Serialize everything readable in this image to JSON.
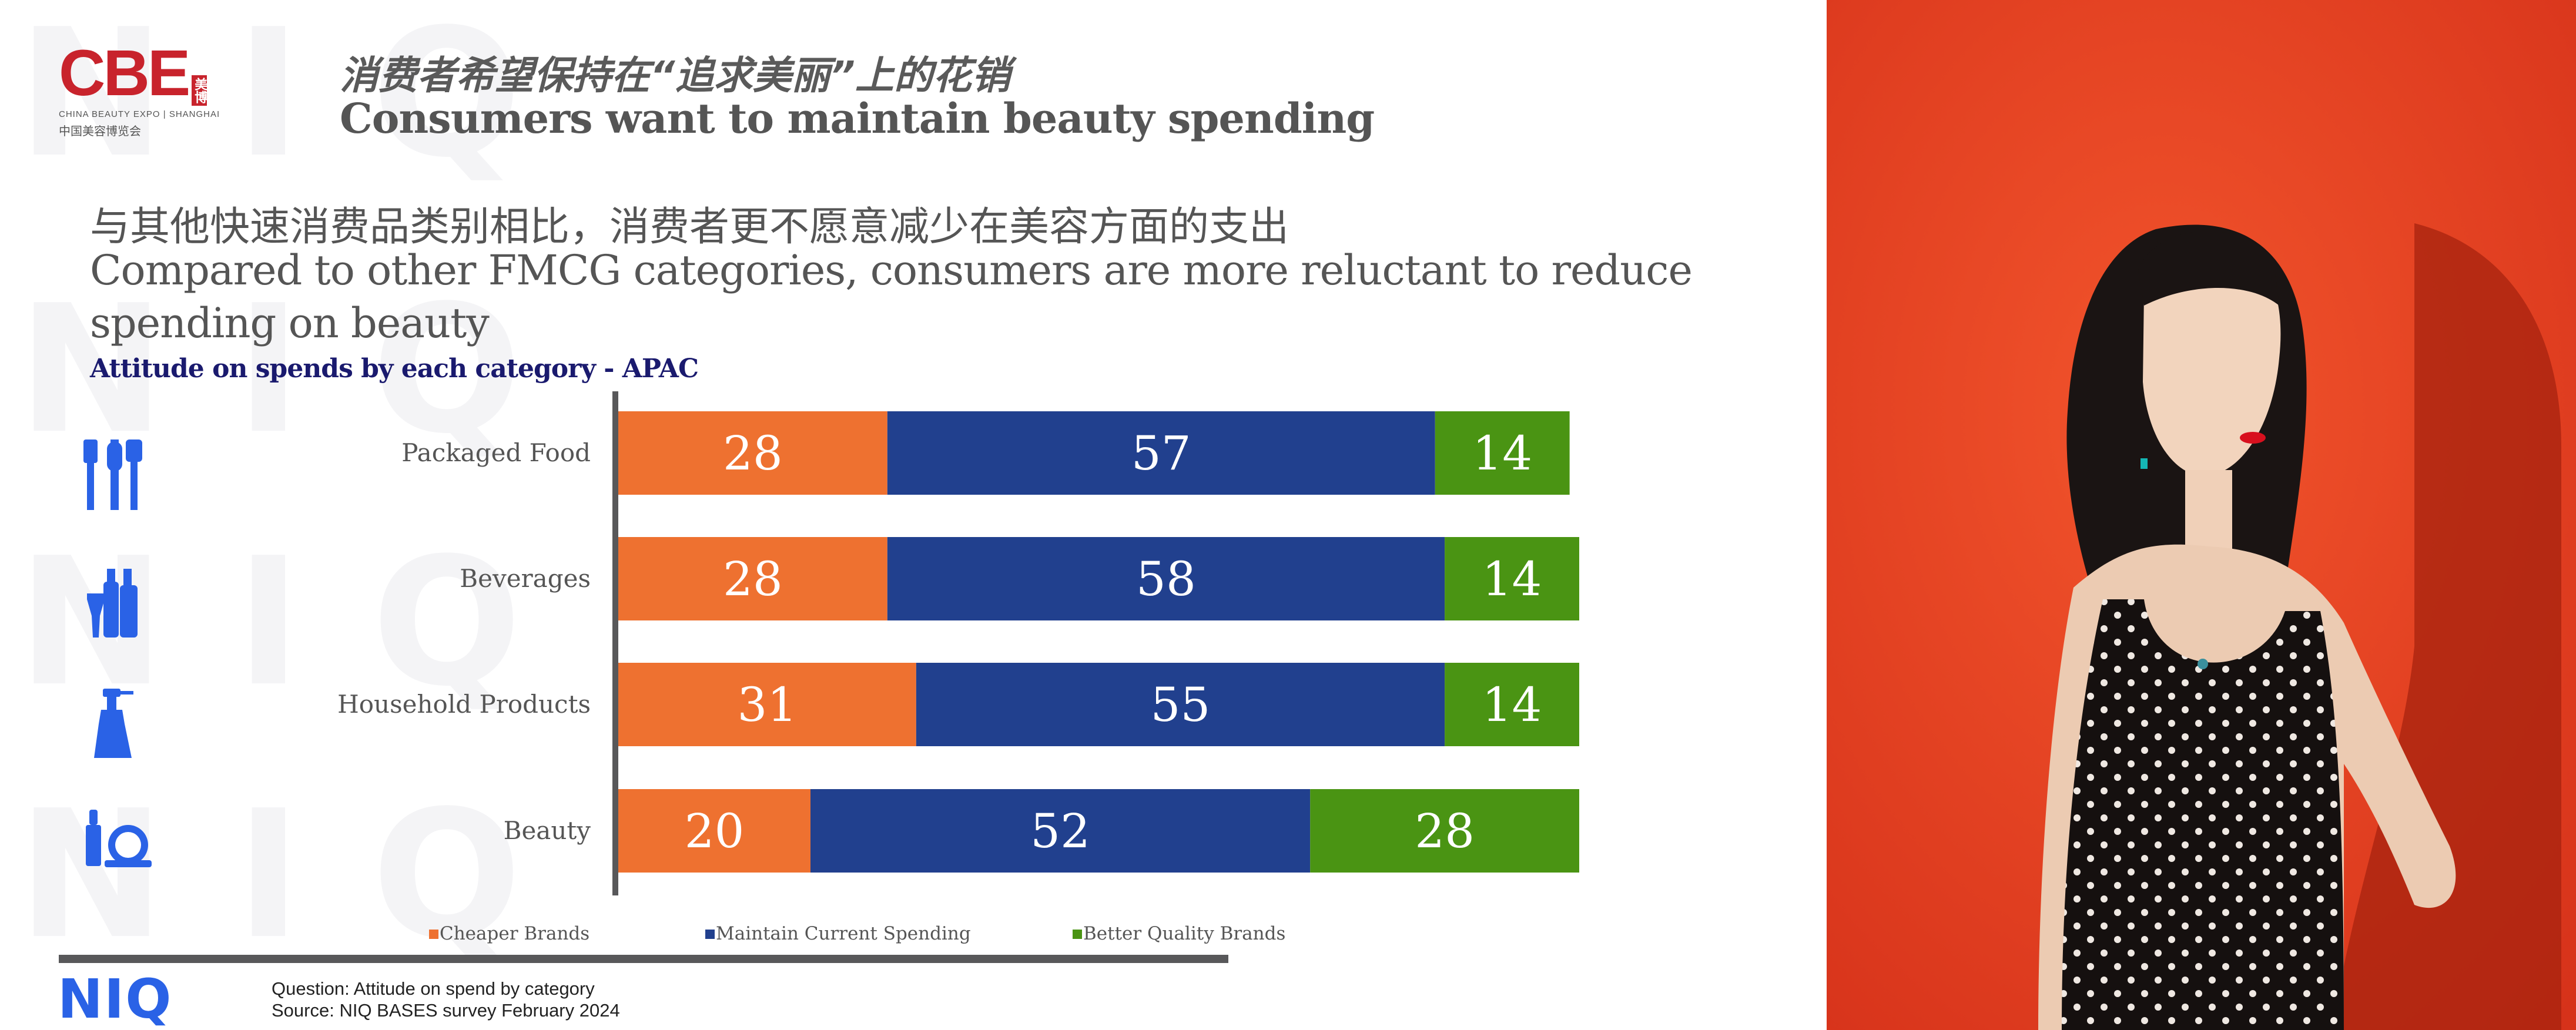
{
  "header": {
    "logo_text": "CBE",
    "logo_cn_mark": "美博",
    "logo_sub_en": "CHINA BEAUTY EXPO | SHANGHAI",
    "logo_sub_cn": "中国美容博览会",
    "title_cn": "消费者希望保持在“追求美丽”上的花销",
    "title_en": "Consumers want to maintain beauty spending"
  },
  "subtitle": {
    "cn": "与其他快速消费品类别相比，消费者更不愿意减少在美容方面的支出",
    "en": "Compared to other FMCG categories, consumers are more reluctant to reduce spending on beauty"
  },
  "chart_title": "Attitude on spends by each category - APAC",
  "chart_data": {
    "type": "bar",
    "orientation": "horizontal",
    "stacked": true,
    "categories": [
      "Packaged Food",
      "Beverages",
      "Household Products",
      "Beauty"
    ],
    "series": [
      {
        "name": "Cheaper Brands",
        "color": "#ee7130",
        "values": [
          28,
          28,
          31,
          20
        ]
      },
      {
        "name": "Maintain Current Spending",
        "color": "#21408e",
        "values": [
          57,
          58,
          55,
          52
        ]
      },
      {
        "name": "Better Quality Brands",
        "color": "#4a9413",
        "values": [
          14,
          14,
          14,
          28
        ]
      }
    ],
    "xlim": [
      0,
      100
    ],
    "legend_position": "bottom",
    "grid": false,
    "category_icons": [
      "cutlery-icon",
      "bottles-icon",
      "spray-bottle-icon",
      "cosmetics-icon"
    ]
  },
  "footer": {
    "brand": "NIQ",
    "question": "Question: Attitude on spend by category",
    "source": "Source: NIQ BASES survey February 2024"
  },
  "watermark_text": "NIQ",
  "colors": {
    "orange": "#ee7130",
    "navy": "#21408e",
    "green": "#4a9413",
    "brand_red": "#c8232c",
    "niq_blue": "#2a62e6",
    "photo_background": "#e63b1e"
  }
}
